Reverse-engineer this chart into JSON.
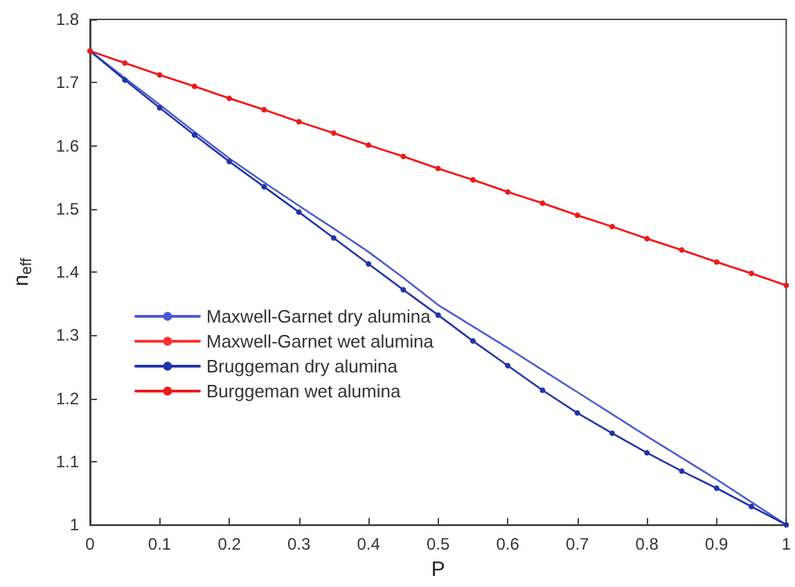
{
  "chart_data": {
    "type": "line",
    "xlabel": "P",
    "ylabel": "n$_{eff}$",
    "x": [
      0,
      0.05,
      0.1,
      0.15,
      0.2,
      0.25,
      0.3,
      0.35,
      0.4,
      0.45,
      0.5,
      0.55,
      0.6,
      0.65,
      0.7,
      0.75,
      0.8,
      0.85,
      0.9,
      0.95,
      1
    ],
    "xlim": [
      0,
      1
    ],
    "xticks": [
      0,
      0.1,
      0.2,
      0.3,
      0.4,
      0.5,
      0.6,
      0.7,
      0.8,
      0.9,
      1
    ],
    "ylim": [
      1,
      1.8
    ],
    "yticks": [
      1,
      1.1,
      1.2,
      1.3,
      1.4,
      1.5,
      1.6,
      1.7,
      1.8
    ],
    "grid": false,
    "legend": "bottom left",
    "line_style": "solid",
    "series": [
      {
        "name": "Maxwell-Garnet dry alumina",
        "color": "#4a5bd0",
        "marker": "none",
        "values": [
          1.75,
          1.707,
          1.665,
          1.622,
          1.58,
          1.542,
          1.505,
          1.469,
          1.432,
          1.391,
          1.348,
          1.314,
          1.28,
          1.245,
          1.21,
          1.175,
          1.14,
          1.106,
          1.072,
          1.036,
          1.0
        ]
      },
      {
        "name": "Maxwell-Garnet wet alumina",
        "color": "#ff3030",
        "marker": "none",
        "values": [
          1.75,
          1.731,
          1.712,
          1.694,
          1.675,
          1.657,
          1.638,
          1.62,
          1.601,
          1.583,
          1.564,
          1.546,
          1.527,
          1.509,
          1.49,
          1.472,
          1.453,
          1.435,
          1.416,
          1.398,
          1.379
        ]
      },
      {
        "name": "Bruggeman dry alumina",
        "color": "#1f35a8",
        "marker": "circle",
        "values": [
          1.75,
          1.704,
          1.66,
          1.617,
          1.575,
          1.535,
          1.495,
          1.454,
          1.413,
          1.372,
          1.332,
          1.291,
          1.252,
          1.213,
          1.177,
          1.145,
          1.114,
          1.085,
          1.058,
          1.029,
          1.0
        ]
      },
      {
        "name": "Burggeman wet alumina",
        "color": "#ee1a1a",
        "marker": "circle",
        "values": [
          1.75,
          1.731,
          1.712,
          1.694,
          1.675,
          1.657,
          1.638,
          1.62,
          1.601,
          1.583,
          1.564,
          1.546,
          1.527,
          1.509,
          1.49,
          1.472,
          1.453,
          1.435,
          1.416,
          1.398,
          1.379
        ]
      }
    ]
  }
}
